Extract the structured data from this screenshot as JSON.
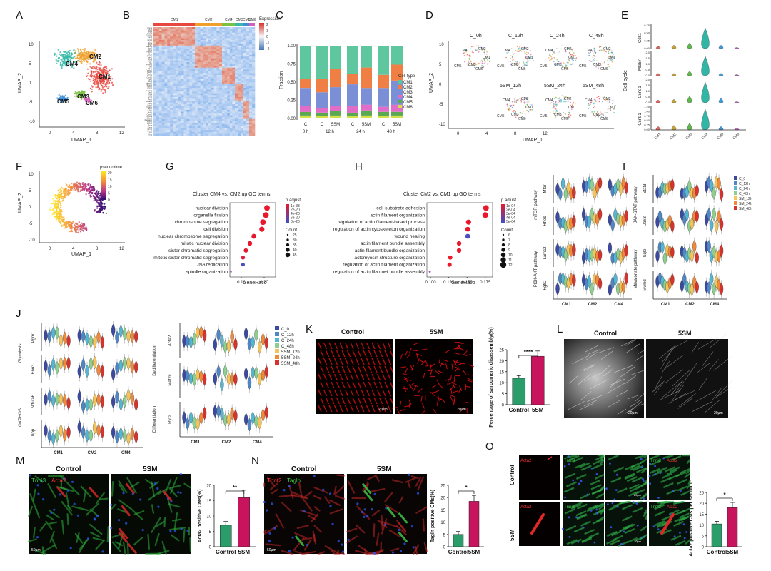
{
  "panel_letters": [
    "A",
    "B",
    "C",
    "D",
    "E",
    "F",
    "G",
    "H",
    "I",
    "J",
    "K",
    "L",
    "M",
    "N",
    "O"
  ],
  "A": {
    "xlabel": "UMAP_1",
    "ylabel": "UMAP_2",
    "xticks": [
      "0",
      "4",
      "8",
      "12"
    ],
    "yticks": [
      "10",
      "5",
      "0",
      "-5",
      "-10"
    ],
    "clusters": [
      {
        "name": "CM1",
        "color": "#e8473f"
      },
      {
        "name": "CM2",
        "color": "#f0a02a"
      },
      {
        "name": "CM3",
        "color": "#7cc242"
      },
      {
        "name": "CM4",
        "color": "#36b9a8"
      },
      {
        "name": "CM5",
        "color": "#3d8fd8"
      },
      {
        "name": "CM6",
        "color": "#d35fb7"
      }
    ]
  },
  "B": {
    "title": "Expression",
    "legend_ticks": [
      "2",
      "1",
      "0",
      "-1",
      "-2"
    ],
    "groups": [
      "CM1",
      "CM2",
      "CM4",
      "CM3",
      "CM5",
      "CM6"
    ],
    "genes": [
      "Lmna",
      "Myl6",
      "Mylk",
      "Csrp3",
      "Col1a1",
      "Tnnt2",
      "Actc1",
      "Myh7",
      "Nppa",
      "Nppb",
      "Ankrd1",
      "Xirp2",
      "Flnc",
      "Hspb1",
      "Des",
      "Cryab",
      "Tpm1",
      "Myl4",
      "Myl7",
      "Sln",
      "Pdlim3",
      "Mb",
      "Ckm",
      "Cox6a2",
      "Mki67",
      "Top2a",
      "Cenpf",
      "Ccnb1",
      "Cdk1",
      "Birc5",
      "Hmgb2",
      "Stmn1",
      "Tubb5",
      "H2afz",
      "Ube2c",
      "Cks2",
      "Pbk",
      "Kif11",
      "Ect2",
      "Prc1",
      "Nusap1",
      "Tpx2",
      "Smc2",
      "Ncapg",
      "Anln",
      "Aurkb",
      "Bub1",
      "Ccna2",
      "Kif20a",
      "Cdca8",
      "Racgap1",
      "Mcm5",
      "Mcm6",
      "Pcna",
      "Tyms",
      "Rrm2",
      "Gins2",
      "Dut",
      "Ung"
    ]
  },
  "C": {
    "ylabel": "Fraction",
    "yticks": [
      "1.00",
      "0.75",
      "0.50",
      "0.25",
      "0.00"
    ],
    "legend_title": "Cell type",
    "bar_labels": [
      "C",
      "C",
      "5SM",
      "C",
      "5SM",
      "C",
      "5SM"
    ],
    "time_labels": [
      "0 h",
      "12 h",
      "24 h",
      "48 h"
    ]
  },
  "D": {
    "xlabel": "UMAP_1",
    "ylabel": "UMAP_2",
    "xticks": [
      "0",
      "4",
      "8",
      "12"
    ],
    "yticks": [
      "10",
      "5",
      "0",
      "-5",
      "-10"
    ],
    "panels": [
      "C_0h",
      "C_12h",
      "C_24h",
      "C_48h",
      "5SM_12h",
      "5SM_24h",
      "5SM_48h"
    ],
    "cluster_labels": [
      "CM4",
      "CM2",
      "CM1",
      "CM3",
      "CM5",
      "CM6"
    ]
  },
  "E": {
    "group_label": "Cell cycle",
    "genes": [
      "Cdk1",
      "Mki67",
      "Ccnd1",
      "Ccnb1"
    ],
    "yticks": [
      [
        "0.75",
        "0.50",
        "0.25",
        "0.00"
      ],
      [
        "2.0",
        "1.5",
        "1.0",
        "0.5",
        "0.0"
      ],
      [
        "2.0",
        "1.5",
        "1.0",
        "0.5",
        "0.0"
      ],
      [
        "1.25",
        "1.00",
        "0.75",
        "0.50",
        "0.25",
        "0.00"
      ]
    ],
    "xlabels": [
      "CM1",
      "CM2",
      "CM3",
      "CM4",
      "CM5",
      "CM6"
    ]
  },
  "F": {
    "title": "pseudotime",
    "colorbar_ticks": [
      "20",
      "15",
      "10",
      "5",
      "0"
    ],
    "xlabel": "UMAP_1",
    "ylabel": "UMAP_2",
    "xticks": [
      "0",
      "4",
      "8",
      "12"
    ],
    "yticks": [
      "10",
      "5",
      "0",
      "-5",
      "-10"
    ]
  },
  "G": {
    "title": "Cluster CM4 vs. CM2 up GO terms",
    "xlabel": "GeneRatio",
    "legend_padj_title": "p.adjust",
    "padj_ticks": [
      "1e-33",
      "2e-20",
      "4e-20",
      "6e-20",
      "8e-20"
    ],
    "legend_count_title": "Count",
    "count_ticks": [
      "25",
      "30",
      "35",
      "40",
      "45"
    ],
    "xticks": [
      "0.16",
      "0.20"
    ],
    "xlim": [
      0.14,
      0.22
    ]
  },
  "H": {
    "title": "Cluster CM2 vs. CM1 up GO terms",
    "xlabel": "GeneRatio",
    "legend_padj_title": "p.adjust",
    "padj_ticks": [
      "1e-04",
      "2e-04",
      "3e-04",
      "4e-04",
      "5e-04"
    ],
    "legend_count_title": "Count",
    "count_ticks": [
      "6",
      "7",
      "8",
      "9",
      "10",
      "11",
      "12"
    ],
    "xticks": [
      "0.100",
      "0.125",
      "0.150",
      "0.175"
    ],
    "xlim": [
      0.095,
      0.185
    ]
  },
  "I": {
    "legend": [
      "C_0",
      "C_12h",
      "C_24h",
      "C_48h",
      "SM_12h",
      "SM_24h",
      "SM_48h"
    ],
    "legend_colors": [
      "#3b4aa0",
      "#4f86c6",
      "#56b6d1",
      "#8ccf8e",
      "#f4c45a",
      "#ef8a3c",
      "#d7322b"
    ],
    "left_groups": [
      {
        "pathway": "mTOR pathway",
        "genes": [
          "Mtor",
          "Rheb"
        ]
      },
      {
        "pathway": "PI3K-AKT pathway",
        "genes": [
          "Lamc2",
          "Fgfr2"
        ]
      }
    ],
    "right_groups": [
      {
        "pathway": "JAK-STAT pathway",
        "genes": [
          "Stat3",
          "Jak3"
        ]
      },
      {
        "pathway": "Mevalonate pathway",
        "genes": [
          "Sqle",
          "Mvmd"
        ]
      }
    ],
    "xlabels": [
      "CM1",
      "CM2",
      "CM4"
    ]
  },
  "J": {
    "legend": [
      "C_0",
      "C_12h",
      "C_24h",
      "C_48h",
      "5SM_12h",
      "5SM_24h",
      "5SM_48h"
    ],
    "left_groups": [
      {
        "pathway": "Glycolysis",
        "genes": [
          "Pgm1",
          "Eno3"
        ]
      },
      {
        "pathway": "OXPHOS",
        "genes": [
          "Ndufa6",
          "Lhpp"
        ]
      }
    ],
    "right_groups": [
      {
        "pathway": "Dedifferentiation",
        "genes": [
          "Acta2",
          "Mef2c"
        ]
      },
      {
        "pathway": "Differentiation",
        "genes": [
          "Ryr2"
        ]
      }
    ],
    "xlabels": [
      "CM1",
      "CM2",
      "CM4"
    ]
  },
  "K": {
    "labels": [
      "Control",
      "5SM"
    ],
    "ylabel": "Percentage of sarcomeric disassembly(%)",
    "yticks": [
      "0",
      "5",
      "10",
      "15",
      "20",
      "25"
    ],
    "significance": "****",
    "scale_bar": "20μm",
    "chart_data": {
      "type": "bar",
      "categories": [
        "Control",
        "5SM"
      ],
      "values": [
        12,
        22
      ],
      "ylim": [
        0,
        25
      ],
      "colors": [
        "#2a9d6a",
        "#c8145c"
      ]
    }
  },
  "L": {
    "labels": [
      "Control",
      "5SM"
    ],
    "scale_bar": "20μm"
  },
  "M": {
    "labels": [
      "Control",
      "5SM"
    ],
    "stain_green": "Tnni3",
    "stain_red": "Acta2",
    "ylabel": "Acta2 positive CMs(%)",
    "yticks": [
      "0",
      "5",
      "10",
      "15",
      "20"
    ],
    "significance": "**",
    "scale_bar": "50μm",
    "chart_data": {
      "type": "bar",
      "categories": [
        "Control",
        "5SM"
      ],
      "values": [
        7,
        16
      ],
      "ylim": [
        0,
        20
      ],
      "colors": [
        "#2a9d6a",
        "#c8145c"
      ]
    }
  },
  "N": {
    "labels": [
      "Control",
      "5SM"
    ],
    "stain_red": "Tnnt2",
    "stain_green": "Tagln",
    "ylabel": "Tagln positive CMs(%)",
    "yticks": [
      "0",
      "5",
      "10",
      "15",
      "20",
      "25"
    ],
    "significance": "*",
    "scale_bar": "50μm",
    "chart_data": {
      "type": "bar",
      "categories": [
        "Control",
        "5SM"
      ],
      "values": [
        5,
        18.5
      ],
      "ylim": [
        0,
        25
      ],
      "colors": [
        "#2a9d6a",
        "#c8145c"
      ]
    }
  },
  "O": {
    "row_labels": [
      "Control",
      "5SM"
    ],
    "col_labels": [
      "Acta2",
      "Tnni3",
      "Tnni3",
      "Acta2"
    ],
    "ylabel": "Acta2 positive CMs per section",
    "yticks": [
      "0",
      "5",
      "10",
      "15",
      "20",
      "25"
    ],
    "significance": "*",
    "xlabels": [
      "Control",
      "5SM"
    ],
    "scale_bar": "20μm",
    "chart_data": {
      "type": "bar",
      "categories": [
        "Control",
        "5SM"
      ],
      "values": [
        10.5,
        18
      ],
      "ylim": [
        0,
        25
      ],
      "colors": [
        "#2a9d6a",
        "#c8145c"
      ]
    }
  }
}
